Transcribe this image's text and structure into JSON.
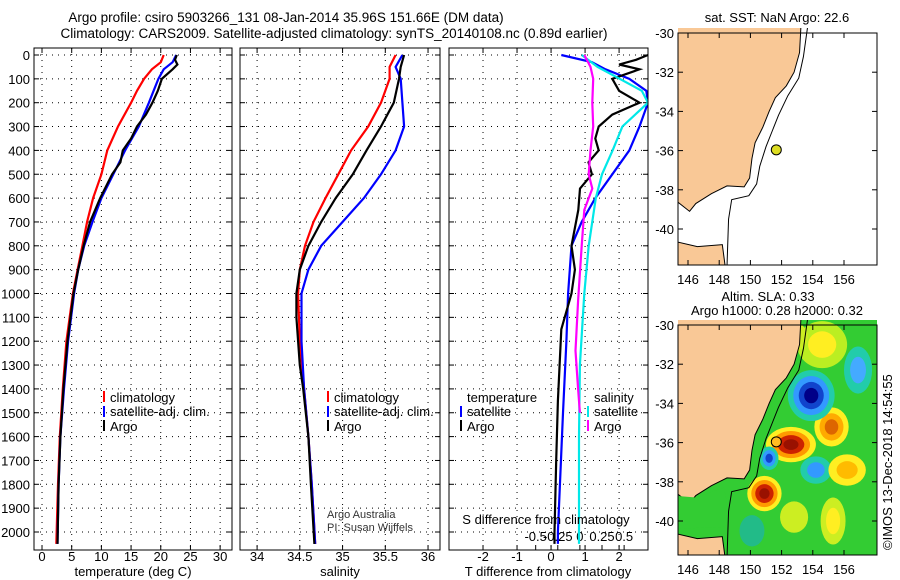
{
  "header": {
    "title1": "Argo profile: csiro 5903266_131 08-Jan-2014 35.96S 151.66E (DM data)",
    "title2": "Climatology: CARS2009. Satellite-adjusted climatology: synTS_20140108.nc (0.89d earlier)"
  },
  "colors": {
    "climatology": "#ff0000",
    "satellite": "#0000ff",
    "argo": "#000000",
    "sal_satellite": "#00e8e8",
    "sal_argo": "#ff00ff",
    "land": "#f9c896"
  },
  "chart_data": [
    {
      "type": "line",
      "id": "temperature",
      "xlabel": "temperature (deg C)",
      "ylabel": "depth",
      "xlim": [
        -1.35,
        32
      ],
      "ylim": [
        2075,
        -30
      ],
      "xticks": [
        0,
        5,
        10,
        15,
        20,
        25,
        30
      ],
      "yticks": [
        0,
        100,
        200,
        300,
        400,
        500,
        600,
        700,
        800,
        900,
        1000,
        1100,
        1200,
        1300,
        1400,
        1500,
        1600,
        1700,
        1800,
        1900,
        2000
      ],
      "legend": [
        "climatology",
        "satellite-adj. clim.",
        "Argo"
      ],
      "series": [
        {
          "name": "climatology",
          "color": "#ff0000",
          "depth": [
            0,
            30,
            60,
            100,
            150,
            200,
            300,
            400,
            500,
            600,
            700,
            800,
            900,
            1000,
            1200,
            1400,
            1600,
            1800,
            2050
          ],
          "values": [
            20.5,
            20,
            18.5,
            17.2,
            16,
            15,
            12.8,
            11,
            10,
            8.6,
            7.6,
            6.8,
            6,
            5.2,
            4.1,
            3.5,
            3,
            2.7,
            2.4
          ]
        },
        {
          "name": "satellite-adj. clim.",
          "color": "#0000ff",
          "depth": [
            0,
            30,
            60,
            100,
            150,
            200,
            300,
            400,
            500,
            600,
            700,
            800,
            900,
            1000,
            1200,
            1400,
            1600,
            1800,
            2050
          ],
          "values": [
            22.6,
            22,
            20.5,
            19.6,
            18.8,
            18,
            16.3,
            14,
            12,
            10,
            8.5,
            7.1,
            6.1,
            5.4,
            4.4,
            3.7,
            3.1,
            2.8,
            2.6
          ]
        },
        {
          "name": "Argo",
          "color": "#000000",
          "depth": [
            0,
            20,
            40,
            60,
            100,
            150,
            200,
            250,
            300,
            350,
            400,
            450,
            500,
            600,
            700,
            800,
            900,
            1000,
            1100,
            1200,
            1400,
            1600,
            1800,
            2050
          ],
          "values": [
            22.7,
            22.4,
            22.8,
            22,
            20.2,
            19.5,
            18.6,
            17.5,
            16,
            15,
            13.6,
            13.2,
            11.8,
            9.8,
            8.1,
            7,
            6.1,
            5.3,
            4.8,
            4.3,
            3.6,
            3.1,
            2.8,
            2.6
          ]
        }
      ]
    },
    {
      "type": "line",
      "id": "salinity",
      "xlabel": "salinity",
      "xlim": [
        33.8,
        36.14
      ],
      "ylim": [
        2075,
        -30
      ],
      "xticks": [
        34,
        34.5,
        35,
        35.5,
        36
      ],
      "xticklabels": [
        "34",
        "34.5",
        "35",
        "35.5",
        "36"
      ],
      "legend": [
        "climatology",
        "satellite-adj. clim.",
        "Argo"
      ],
      "series": [
        {
          "name": "climatology",
          "color": "#ff0000",
          "depth": [
            0,
            50,
            100,
            200,
            300,
            400,
            500,
            600,
            700,
            800,
            900,
            1000,
            1200,
            1400,
            1600,
            1800,
            2050
          ],
          "values": [
            35.62,
            35.55,
            35.55,
            35.45,
            35.3,
            35.1,
            34.95,
            34.8,
            34.66,
            34.56,
            34.5,
            34.48,
            34.5,
            34.55,
            34.6,
            34.64,
            34.68
          ]
        },
        {
          "name": "satellite-adj. clim.",
          "color": "#0000ff",
          "depth": [
            0,
            50,
            100,
            200,
            300,
            400,
            500,
            600,
            700,
            800,
            900,
            1000,
            1200,
            1400,
            1600,
            1800,
            2050
          ],
          "values": [
            35.7,
            35.62,
            35.68,
            35.7,
            35.72,
            35.62,
            35.45,
            35.25,
            35.0,
            34.75,
            34.6,
            34.52,
            34.52,
            34.55,
            34.6,
            34.64,
            34.68
          ]
        },
        {
          "name": "Argo",
          "color": "#000000",
          "depth": [
            0,
            50,
            100,
            200,
            300,
            400,
            500,
            600,
            700,
            800,
            900,
            1000,
            1100,
            1200,
            1300,
            1400,
            1600,
            1800,
            2050
          ],
          "values": [
            35.72,
            35.68,
            35.66,
            35.6,
            35.45,
            35.28,
            35.12,
            34.92,
            34.75,
            34.6,
            34.5,
            34.46,
            34.46,
            34.48,
            34.5,
            34.54,
            34.6,
            34.63,
            34.67
          ]
        }
      ]
    },
    {
      "type": "line",
      "id": "difference",
      "xlabel": "T difference from climatology",
      "xlabel2": "S difference from climatology",
      "xlim": [
        -3,
        2.85
      ],
      "xlim2": [
        -1.48,
        0.77
      ],
      "ylim": [
        2075,
        -30
      ],
      "xticks": [
        -2,
        -1,
        0,
        1,
        2
      ],
      "xticks2": [
        -0.5,
        -0.25,
        0,
        0.25,
        0.5
      ],
      "xticklabels2": [
        "-0.5",
        "-0.25",
        "0",
        "0.25",
        "0.5"
      ],
      "legend_temperature": {
        "title": "temperature",
        "items": [
          "satellite",
          "Argo"
        ]
      },
      "legend_salinity": {
        "title": "salinity",
        "items": [
          "satellite",
          "Argo"
        ]
      },
      "series": [
        {
          "name": "temperature satellite",
          "axis": "T",
          "color": "#0000ff",
          "depth": [
            0,
            30,
            60,
            100,
            150,
            200,
            300,
            400,
            500,
            600,
            700,
            800,
            1000,
            1200,
            1500,
            2000,
            2050
          ],
          "values": [
            0.3,
            1.2,
            1.6,
            2.3,
            2.8,
            2.85,
            2.6,
            2.3,
            1.8,
            1.3,
            0.9,
            0.6,
            0.5,
            0.45,
            0.35,
            0.2,
            0.2
          ]
        },
        {
          "name": "temperature Argo",
          "axis": "T",
          "color": "#000000",
          "depth": [
            0,
            20,
            40,
            60,
            100,
            150,
            200,
            250,
            300,
            350,
            400,
            450,
            500,
            560,
            650,
            800,
            900,
            1000,
            1150,
            1300,
            1450,
            1700,
            2000,
            2050
          ],
          "values": [
            2.85,
            2.5,
            2.0,
            2.6,
            1.8,
            2.0,
            2.6,
            1.8,
            1.4,
            1.3,
            1.4,
            1.1,
            1.2,
            0.85,
            0.8,
            0.6,
            0.7,
            0.6,
            0.3,
            0.25,
            0.2,
            0.15,
            0.1,
            0.1
          ]
        },
        {
          "name": "salinity satellite",
          "axis": "S",
          "color": "#00e8e8",
          "depth": [
            0,
            50,
            100,
            150,
            200,
            300,
            400,
            500,
            600,
            800,
            1000,
            1300,
            1600,
            2000,
            2050
          ],
          "values": [
            0.02,
            0.2,
            0.45,
            0.7,
            0.77,
            0.48,
            0.37,
            0.25,
            0.18,
            0.1,
            0.05,
            0.0,
            -0.01,
            -0.01,
            -0.01
          ]
        },
        {
          "name": "salinity Argo",
          "axis": "S",
          "color": "#ff00ff",
          "depth": [
            0,
            50,
            100,
            200,
            300,
            400,
            500,
            560,
            600,
            650,
            800,
            1030,
            1240,
            1400,
            1500
          ],
          "values": [
            0.05,
            0.12,
            0.15,
            0.14,
            0.15,
            0.12,
            0.1,
            0.14,
            0.1,
            0.05,
            0.02,
            -0.02,
            -0.05,
            -0.02,
            0.0
          ]
        }
      ]
    }
  ],
  "credits": {
    "line1": "Argo Australia",
    "line2": "PI: Susan Wijffels"
  },
  "maps": {
    "sst": {
      "title": "sat. SST: NaN Argo: 22.6",
      "lon_ticks": [
        "146",
        "148",
        "150",
        "152",
        "154",
        "156"
      ],
      "lat_ticks": [
        "-30",
        "-32",
        "-34",
        "-36",
        "-38",
        "-40"
      ],
      "profile_lon": 151.66,
      "profile_lat": -35.96
    },
    "sla": {
      "title1": "Altim. SLA: 0.33",
      "title2": "Argo h1000: 0.28 h2000: 0.32",
      "lon_ticks": [
        "146",
        "148",
        "150",
        "152",
        "154",
        "156"
      ],
      "lat_ticks": [
        "-30",
        "-32",
        "-34",
        "-36",
        "-38",
        "-40"
      ],
      "profile_lon": 151.66,
      "profile_lat": -35.96
    }
  },
  "footer": {
    "timestamp": "©IMOS 13-Dec-2018 14:54:55"
  }
}
